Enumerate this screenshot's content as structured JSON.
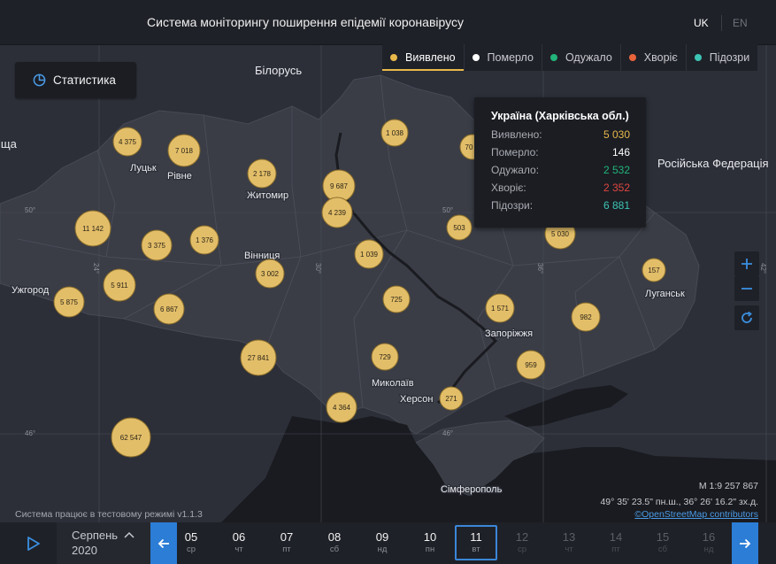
{
  "header": {
    "title": "Система моніторингу поширення епідемії коронавірусу",
    "lang_uk": "UK",
    "lang_en": "EN"
  },
  "stat_button": {
    "label": "Статистика"
  },
  "legend": [
    {
      "label": "Виявлено",
      "color": "#e8b84a",
      "active": true
    },
    {
      "label": "Померло",
      "color": "#ffffff",
      "active": false
    },
    {
      "label": "Одужало",
      "color": "#22b47a",
      "active": false
    },
    {
      "label": "Хворіє",
      "color": "#e9643a",
      "active": false
    },
    {
      "label": "Підозри",
      "color": "#3cc4b4",
      "active": false
    }
  ],
  "tooltip": {
    "title": "Україна (Харківська обл.)",
    "rows": [
      {
        "label": "Виявлено:",
        "value": "5 030",
        "color": "#e8b84a"
      },
      {
        "label": "Померло:",
        "value": "146",
        "color": "#ffffff"
      },
      {
        "label": "Одужало:",
        "value": "2 532",
        "color": "#22b47a"
      },
      {
        "label": "Хворіє:",
        "value": "2 352",
        "color": "#e0463f"
      },
      {
        "label": "Підозри:",
        "value": "6 881",
        "color": "#3cc4b4"
      }
    ]
  },
  "map_labels": {
    "belarus": "Білорусь",
    "russia": "Російська Федерація",
    "left_cut": "іща",
    "lutsk": "Луцьк",
    "rivne": "Рівне",
    "zhytomyr": "Житомир",
    "vinnytsia": "Вінниця",
    "uzhhorod": "Ужгород",
    "zaporizhzhia": "Запоріжжя",
    "mykolaiv": "Миколаїв",
    "kherson": "Херсон",
    "luhansk": "Луганськ",
    "simferopol": "Сімферополь"
  },
  "graticule": {
    "lat50_left": "50°",
    "lat50_mid": "50°",
    "lat46_left": "46°",
    "lat46_mid": "46°",
    "lon24": "24°",
    "lon30": "30°",
    "lon36": "36°",
    "lon42": "42°"
  },
  "clusters": [
    {
      "id": "c4375",
      "label": "4 375",
      "value": 4375
    },
    {
      "id": "c7018",
      "label": "7 018",
      "value": 7018
    },
    {
      "id": "c2178",
      "label": "2 178",
      "value": 2178
    },
    {
      "id": "c1038",
      "label": "1 038",
      "value": 1038
    },
    {
      "id": "c70",
      "label": "70",
      "value": 70
    },
    {
      "id": "c9687",
      "label": "9 687",
      "value": 9687
    },
    {
      "id": "c4239",
      "label": "4 239",
      "value": 4239
    },
    {
      "id": "c11142",
      "label": "11 142",
      "value": 11142
    },
    {
      "id": "c3375",
      "label": "3 375",
      "value": 3375
    },
    {
      "id": "c1376",
      "label": "1 376",
      "value": 1376
    },
    {
      "id": "c1039",
      "label": "1 039",
      "value": 1039
    },
    {
      "id": "c503",
      "label": "503",
      "value": 503
    },
    {
      "id": "c5030",
      "label": "5 030",
      "value": 5030
    },
    {
      "id": "c3002",
      "label": "3 002",
      "value": 3002
    },
    {
      "id": "c5911",
      "label": "5 911",
      "value": 5911
    },
    {
      "id": "c5875",
      "label": "5 875",
      "value": 5875
    },
    {
      "id": "c6867",
      "label": "6 867",
      "value": 6867
    },
    {
      "id": "c725",
      "label": "725",
      "value": 725
    },
    {
      "id": "c1571",
      "label": "1 571",
      "value": 1571
    },
    {
      "id": "c982",
      "label": "982",
      "value": 982
    },
    {
      "id": "c157",
      "label": "157",
      "value": 157
    },
    {
      "id": "c27841",
      "label": "27 841",
      "value": 27841
    },
    {
      "id": "c729",
      "label": "729",
      "value": 729
    },
    {
      "id": "c959",
      "label": "959",
      "value": 959
    },
    {
      "id": "c4364",
      "label": "4 364",
      "value": 4364
    },
    {
      "id": "c271",
      "label": "271",
      "value": 271
    },
    {
      "id": "c62547",
      "label": "62 547",
      "value": 62547
    }
  ],
  "scale": {
    "ratio": "М 1:9 257 867",
    "coords": "49° 35' 23.5\" пн.ш., 36° 26' 16.2\" зх.д.",
    "attribution": "©OpenStreetMap contributors"
  },
  "test_mode": "Система працює в тестовому режимі v1.1.3",
  "timeline": {
    "month": "Серпень",
    "year": "2020",
    "days": [
      {
        "d": "05",
        "w": "ср",
        "state": "normal"
      },
      {
        "d": "06",
        "w": "чт",
        "state": "normal"
      },
      {
        "d": "07",
        "w": "пт",
        "state": "normal"
      },
      {
        "d": "08",
        "w": "сб",
        "state": "normal"
      },
      {
        "d": "09",
        "w": "нд",
        "state": "normal"
      },
      {
        "d": "10",
        "w": "пн",
        "state": "normal"
      },
      {
        "d": "11",
        "w": "вт",
        "state": "selected"
      },
      {
        "d": "12",
        "w": "ср",
        "state": "dim"
      },
      {
        "d": "13",
        "w": "чт",
        "state": "dim"
      },
      {
        "d": "14",
        "w": "пт",
        "state": "dim"
      },
      {
        "d": "15",
        "w": "сб",
        "state": "dim"
      },
      {
        "d": "16",
        "w": "нд",
        "state": "dim"
      }
    ]
  }
}
